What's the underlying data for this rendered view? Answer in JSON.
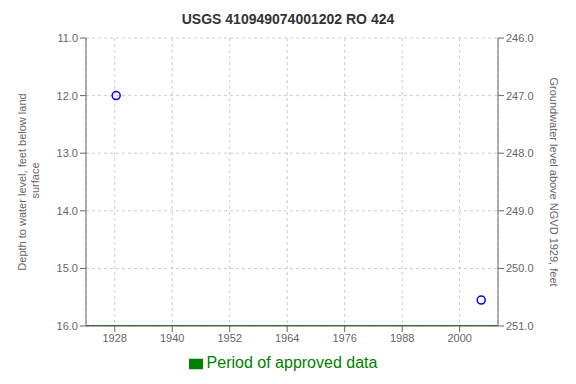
{
  "chart_data": {
    "type": "scatter",
    "title": "USGS 410949074001202 RO 424",
    "ylabel": "Depth to water level, feet below land\n surface",
    "y2label": "Groundwater level above NGVD 1929, feet",
    "xlim": [
      1922,
      2008
    ],
    "ylim": [
      16.0,
      11.0
    ],
    "y2lim": [
      251.0,
      246.0
    ],
    "xticks": [
      1928,
      1940,
      1952,
      1964,
      1976,
      1988,
      2000
    ],
    "yticks": [
      {
        "value": 11,
        "label": "11.0"
      },
      {
        "value": 12,
        "label": "12.0"
      },
      {
        "value": 13,
        "label": "13.0"
      },
      {
        "value": 14,
        "label": "14.0"
      },
      {
        "value": 15,
        "label": "15.0"
      },
      {
        "value": 16,
        "label": "16.0"
      }
    ],
    "y2ticks": [
      {
        "value": 251,
        "label": "251.0"
      },
      {
        "value": 250,
        "label": "250.0"
      },
      {
        "value": 249,
        "label": "249.0"
      },
      {
        "value": 248,
        "label": "248.0"
      },
      {
        "value": 247,
        "label": "247.0"
      },
      {
        "value": 246,
        "label": "246.0"
      }
    ],
    "grid": true,
    "legend": "bottom",
    "series": [
      {
        "name": "Period of approved data",
        "type": "line",
        "color": "#008000",
        "x": [
          1922,
          2008
        ],
        "values": [
          16.0,
          16.0
        ]
      },
      {
        "type": "scatter",
        "color": "#0000ff",
        "marker": "circle",
        "x": [
          1928.3,
          2004.5
        ],
        "values": [
          12.0,
          15.55
        ]
      }
    ]
  }
}
